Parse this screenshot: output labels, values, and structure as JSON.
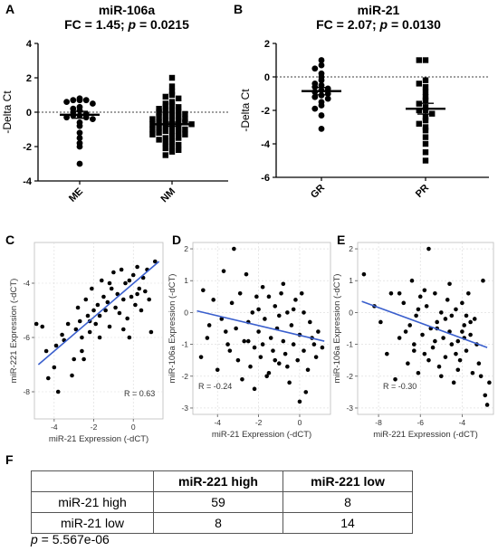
{
  "labels": {
    "a": "A",
    "b": "B",
    "c": "C",
    "d": "D",
    "e": "E",
    "f": "F"
  },
  "chart_data": [
    {
      "id": "A",
      "type": "scatter",
      "title": "miR-106a",
      "subtitle": "FC = 1.45; p = 0.0215",
      "subtitle_parts": [
        "FC = 1.45; ",
        "p",
        " = 0.0215"
      ],
      "ylabel": "-Delta Ct",
      "ylim": [
        -4,
        4
      ],
      "yticks": [
        -4,
        -2,
        0,
        2,
        4
      ],
      "categories": [
        "ME",
        "NM"
      ],
      "reference_line": 0,
      "series": [
        {
          "category": "ME",
          "marker": "circle",
          "mean": -0.15,
          "sem": 0.2,
          "values": [
            0.8,
            0.7,
            0.7,
            0.7,
            0.6,
            0.5,
            0.3,
            0.2,
            0.1,
            0.0,
            -0.1,
            -0.2,
            -0.2,
            -0.3,
            -0.3,
            -0.4,
            -0.6,
            -0.8,
            -1.2,
            -1.5,
            -1.8,
            -2.0,
            -3.0
          ]
        },
        {
          "category": "NM",
          "marker": "square",
          "mean": -0.7,
          "sem": 0.12,
          "values": [
            2.0,
            1.5,
            1.2,
            1.0,
            0.9,
            0.8,
            0.6,
            0.5,
            0.4,
            0.3,
            0.3,
            0.2,
            0.1,
            0.1,
            0.0,
            0.0,
            -0.1,
            -0.2,
            -0.2,
            -0.3,
            -0.3,
            -0.4,
            -0.4,
            -0.5,
            -0.5,
            -0.5,
            -0.6,
            -0.6,
            -0.7,
            -0.7,
            -0.8,
            -0.8,
            -0.9,
            -0.9,
            -1.0,
            -1.0,
            -1.1,
            -1.1,
            -1.2,
            -1.2,
            -1.3,
            -1.3,
            -1.4,
            -1.5,
            -1.5,
            -1.6,
            -1.7,
            -1.8,
            -1.9,
            -2.0,
            -2.1,
            -2.2,
            -2.3,
            -2.5
          ]
        }
      ]
    },
    {
      "id": "B",
      "type": "scatter",
      "title": "miR-21",
      "subtitle": "FC = 2.07; p = 0.0130",
      "subtitle_parts": [
        "FC = 2.07; ",
        "p",
        " = 0.0130"
      ],
      "ylabel": "-Delta Ct",
      "ylim": [
        -6,
        2
      ],
      "yticks": [
        -6,
        -4,
        -2,
        0,
        2
      ],
      "categories": [
        "GR",
        "PR"
      ],
      "reference_line": 0,
      "series": [
        {
          "category": "GR",
          "marker": "circle",
          "mean": -0.85,
          "sem": 0.22,
          "values": [
            1.0,
            0.7,
            0.5,
            0.2,
            0.0,
            -0.2,
            -0.4,
            -0.5,
            -0.6,
            -0.7,
            -0.8,
            -0.9,
            -1.0,
            -1.1,
            -1.2,
            -1.3,
            -1.5,
            -1.7,
            -1.9,
            -2.3,
            -3.1
          ]
        },
        {
          "category": "PR",
          "marker": "square",
          "mean": -1.9,
          "sem": 0.32,
          "values": [
            1.0,
            1.0,
            -0.2,
            -0.4,
            -0.6,
            -0.9,
            -1.2,
            -1.4,
            -1.6,
            -1.8,
            -2.0,
            -2.0,
            -2.2,
            -2.4,
            -2.6,
            -2.8,
            -3.0,
            -3.2,
            -3.6,
            -4.0,
            -4.5,
            -5.0
          ]
        }
      ]
    },
    {
      "id": "C",
      "type": "scatter",
      "xlabel": "miR-21 Expression (-dCT)",
      "ylabel": "miR-221 Expression (-dCT)",
      "xlim": [
        -5,
        1.5
      ],
      "ylim": [
        -9,
        -2.5
      ],
      "xticks": [
        -4,
        -2,
        0
      ],
      "yticks": [
        -8,
        -6,
        -4
      ],
      "annotation": "R = 0.63",
      "fit": {
        "x": [
          -4.8,
          1.3
        ],
        "y": [
          -7.0,
          -3.2
        ]
      },
      "points": [
        [
          -4.9,
          -5.5
        ],
        [
          -4.6,
          -5.6
        ],
        [
          -4.4,
          -6.5
        ],
        [
          -4.3,
          -7.5
        ],
        [
          -4.0,
          -7.1
        ],
        [
          -3.9,
          -6.3
        ],
        [
          -3.6,
          -5.9
        ],
        [
          -3.5,
          -6.1
        ],
        [
          -3.3,
          -5.5
        ],
        [
          -3.1,
          -7.4
        ],
        [
          -2.9,
          -5.7
        ],
        [
          -2.8,
          -4.9
        ],
        [
          -2.7,
          -5.4
        ],
        [
          -2.6,
          -6.0
        ],
        [
          -2.5,
          -6.8
        ],
        [
          -2.4,
          -4.6
        ],
        [
          -2.3,
          -5.2
        ],
        [
          -2.2,
          -5.8
        ],
        [
          -2.1,
          -4.2
        ],
        [
          -2.0,
          -5.0
        ],
        [
          -1.9,
          -5.5
        ],
        [
          -1.8,
          -4.8
        ],
        [
          -1.7,
          -5.2
        ],
        [
          -1.6,
          -3.9
        ],
        [
          -1.5,
          -4.5
        ],
        [
          -1.4,
          -5.0
        ],
        [
          -1.3,
          -4.7
        ],
        [
          -1.2,
          -5.6
        ],
        [
          -1.1,
          -4.2
        ],
        [
          -1.0,
          -3.6
        ],
        [
          -0.9,
          -4.9
        ],
        [
          -0.8,
          -4.4
        ],
        [
          -0.7,
          -5.1
        ],
        [
          -0.6,
          -3.5
        ],
        [
          -0.5,
          -4.6
        ],
        [
          -0.4,
          -4.0
        ],
        [
          -0.3,
          -5.3
        ],
        [
          -0.2,
          -3.9
        ],
        [
          -0.1,
          -4.5
        ],
        [
          0.0,
          -3.7
        ],
        [
          0.1,
          -4.8
        ],
        [
          0.2,
          -3.4
        ],
        [
          0.3,
          -4.2
        ],
        [
          0.4,
          -5.0
        ],
        [
          0.5,
          -3.8
        ],
        [
          0.6,
          -4.3
        ],
        [
          0.7,
          -3.5
        ],
        [
          0.8,
          -4.6
        ],
        [
          0.9,
          -5.8
        ],
        [
          1.1,
          -3.2
        ],
        [
          -3.0,
          -6.8
        ],
        [
          -2.2,
          -5.4
        ],
        [
          -1.2,
          -4.0
        ],
        [
          -0.5,
          -5.7
        ],
        [
          0.2,
          -4.4
        ],
        [
          -1.7,
          -6.0
        ],
        [
          -3.8,
          -8.0
        ],
        [
          -2.6,
          -6.5
        ],
        [
          -0.2,
          -6.0
        ]
      ]
    },
    {
      "id": "D",
      "type": "scatter",
      "xlabel": "miR-21 Expression (-dCT)",
      "ylabel": "miR-106a Expression (-dCT)",
      "xlim": [
        -5.2,
        1.5
      ],
      "ylim": [
        -3.2,
        2.2
      ],
      "xticks": [
        -4,
        -2,
        0
      ],
      "yticks": [
        -3,
        -2,
        -1,
        0,
        1,
        2
      ],
      "annotation": "R = -0.24",
      "fit": {
        "x": [
          -5.0,
          1.2
        ],
        "y": [
          0.05,
          -0.9
        ]
      },
      "points": [
        [
          -4.8,
          -1.4
        ],
        [
          -4.5,
          -0.8
        ],
        [
          -4.2,
          0.4
        ],
        [
          -4.0,
          -1.8
        ],
        [
          -3.8,
          -0.2
        ],
        [
          -3.7,
          1.3
        ],
        [
          -3.5,
          -1.0
        ],
        [
          -3.3,
          0.3
        ],
        [
          -3.2,
          2.0
        ],
        [
          -3.1,
          -0.5
        ],
        [
          -3.0,
          -1.5
        ],
        [
          -2.9,
          0.6
        ],
        [
          -2.7,
          -0.9
        ],
        [
          -2.6,
          1.2
        ],
        [
          -2.5,
          -0.3
        ],
        [
          -2.4,
          -1.7
        ],
        [
          -2.3,
          0.0
        ],
        [
          -2.2,
          -1.1
        ],
        [
          -2.1,
          0.5
        ],
        [
          -2.0,
          -0.6
        ],
        [
          -1.9,
          -1.4
        ],
        [
          -1.8,
          0.8
        ],
        [
          -1.7,
          -0.2
        ],
        [
          -1.6,
          -2.0
        ],
        [
          -1.5,
          0.5
        ],
        [
          -1.4,
          -0.8
        ],
        [
          -1.3,
          -1.2
        ],
        [
          -1.2,
          0.2
        ],
        [
          -1.1,
          -0.5
        ],
        [
          -1.0,
          -1.6
        ],
        [
          -0.9,
          0.6
        ],
        [
          -0.8,
          -0.9
        ],
        [
          -0.7,
          -1.3
        ],
        [
          -0.6,
          0.0
        ],
        [
          -0.5,
          -2.2
        ],
        [
          -0.4,
          -0.4
        ],
        [
          -0.3,
          -1.0
        ],
        [
          -0.2,
          0.4
        ],
        [
          -0.1,
          -1.5
        ],
        [
          0.0,
          -0.7
        ],
        [
          0.1,
          0.6
        ],
        [
          0.2,
          -1.2
        ],
        [
          0.3,
          -2.5
        ],
        [
          0.5,
          -0.3
        ],
        [
          0.7,
          -1.0
        ],
        [
          0.9,
          -0.6
        ],
        [
          1.1,
          -1.1
        ],
        [
          -2.8,
          -2.1
        ],
        [
          -1.5,
          -1.9
        ],
        [
          -0.8,
          0.9
        ],
        [
          0.4,
          -1.8
        ],
        [
          -3.4,
          -1.2
        ],
        [
          -2.2,
          -2.4
        ],
        [
          -1.0,
          -0.1
        ],
        [
          0.0,
          -2.8
        ],
        [
          -4.4,
          -0.4
        ],
        [
          -1.8,
          -1.0
        ],
        [
          -0.3,
          0.1
        ],
        [
          0.6,
          -0.8
        ],
        [
          -2.5,
          -0.9
        ],
        [
          -1.2,
          -1.5
        ],
        [
          0.2,
          0.0
        ],
        [
          -3.6,
          -0.6
        ],
        [
          -0.6,
          -1.7
        ],
        [
          -2.0,
          0.1
        ],
        [
          -4.7,
          0.7
        ],
        [
          0.8,
          -1.4
        ]
      ]
    },
    {
      "id": "E",
      "type": "scatter",
      "xlabel": "miR-221 Expression (-dCT)",
      "ylabel": "miR-106a Expression (-dCT)",
      "xlim": [
        -9,
        -2.5
      ],
      "ylim": [
        -3.2,
        2.2
      ],
      "xticks": [
        -8,
        -6,
        -4
      ],
      "yticks": [
        -3,
        -2,
        -1,
        0,
        1,
        2
      ],
      "annotation": "R = -0.30",
      "fit": {
        "x": [
          -8.8,
          -2.8
        ],
        "y": [
          0.35,
          -1.1
        ]
      },
      "points": [
        [
          -8.7,
          1.2
        ],
        [
          -8.2,
          0.2
        ],
        [
          -7.9,
          -0.3
        ],
        [
          -7.6,
          -1.3
        ],
        [
          -7.4,
          0.6
        ],
        [
          -7.2,
          -2.1
        ],
        [
          -7.0,
          -0.8
        ],
        [
          -6.8,
          0.3
        ],
        [
          -6.6,
          -1.6
        ],
        [
          -6.5,
          -0.4
        ],
        [
          -6.4,
          1.0
        ],
        [
          -6.3,
          -1.0
        ],
        [
          -6.2,
          -0.1
        ],
        [
          -6.1,
          -1.9
        ],
        [
          -6.0,
          0.5
        ],
        [
          -5.9,
          -0.7
        ],
        [
          -5.8,
          -1.3
        ],
        [
          -5.7,
          0.2
        ],
        [
          -5.6,
          2.0
        ],
        [
          -5.5,
          -0.5
        ],
        [
          -5.4,
          -1.1
        ],
        [
          -5.3,
          0.6
        ],
        [
          -5.2,
          -0.3
        ],
        [
          -5.1,
          -1.7
        ],
        [
          -5.0,
          0.0
        ],
        [
          -4.9,
          -0.8
        ],
        [
          -4.8,
          -1.4
        ],
        [
          -4.7,
          0.4
        ],
        [
          -4.6,
          -0.6
        ],
        [
          -4.5,
          -1.0
        ],
        [
          -4.4,
          -2.2
        ],
        [
          -4.3,
          0.1
        ],
        [
          -4.2,
          -0.9
        ],
        [
          -4.1,
          -1.5
        ],
        [
          -4.0,
          0.3
        ],
        [
          -3.9,
          -0.4
        ],
        [
          -3.8,
          -1.2
        ],
        [
          -3.7,
          0.6
        ],
        [
          -3.6,
          -0.7
        ],
        [
          -3.5,
          -1.9
        ],
        [
          -3.4,
          -0.2
        ],
        [
          -3.3,
          -1.0
        ],
        [
          -3.2,
          -1.6
        ],
        [
          -3.1,
          -2.0
        ],
        [
          -3.0,
          1.0
        ],
        [
          -2.9,
          -2.6
        ],
        [
          -2.8,
          -2.9
        ],
        [
          -2.7,
          -2.2
        ],
        [
          -6.7,
          -0.6
        ],
        [
          -5.8,
          0.7
        ],
        [
          -5.0,
          -2.0
        ],
        [
          -4.6,
          0.9
        ],
        [
          -4.0,
          -0.6
        ],
        [
          -6.1,
          0.1
        ],
        [
          -5.3,
          -0.9
        ],
        [
          -4.8,
          -0.2
        ],
        [
          -4.3,
          -1.3
        ],
        [
          -3.9,
          -0.8
        ],
        [
          -5.6,
          -1.5
        ],
        [
          -4.5,
          -0.1
        ],
        [
          -3.6,
          -0.3
        ],
        [
          -7.0,
          0.6
        ],
        [
          -6.3,
          -1.2
        ],
        [
          -5.2,
          -0.5
        ],
        [
          -4.2,
          -1.8
        ],
        [
          -3.8,
          -0.1
        ]
      ]
    }
  ],
  "table": {
    "header": [
      "",
      "miR-221 high",
      "miR-221 low"
    ],
    "rows": [
      {
        "label": "miR-21 high",
        "values": [
          "59",
          "8"
        ]
      },
      {
        "label": "miR-21 low",
        "values": [
          "8",
          "14"
        ]
      }
    ]
  },
  "pvalue": {
    "symbol": "p",
    "text": " = 5.567e-06"
  }
}
